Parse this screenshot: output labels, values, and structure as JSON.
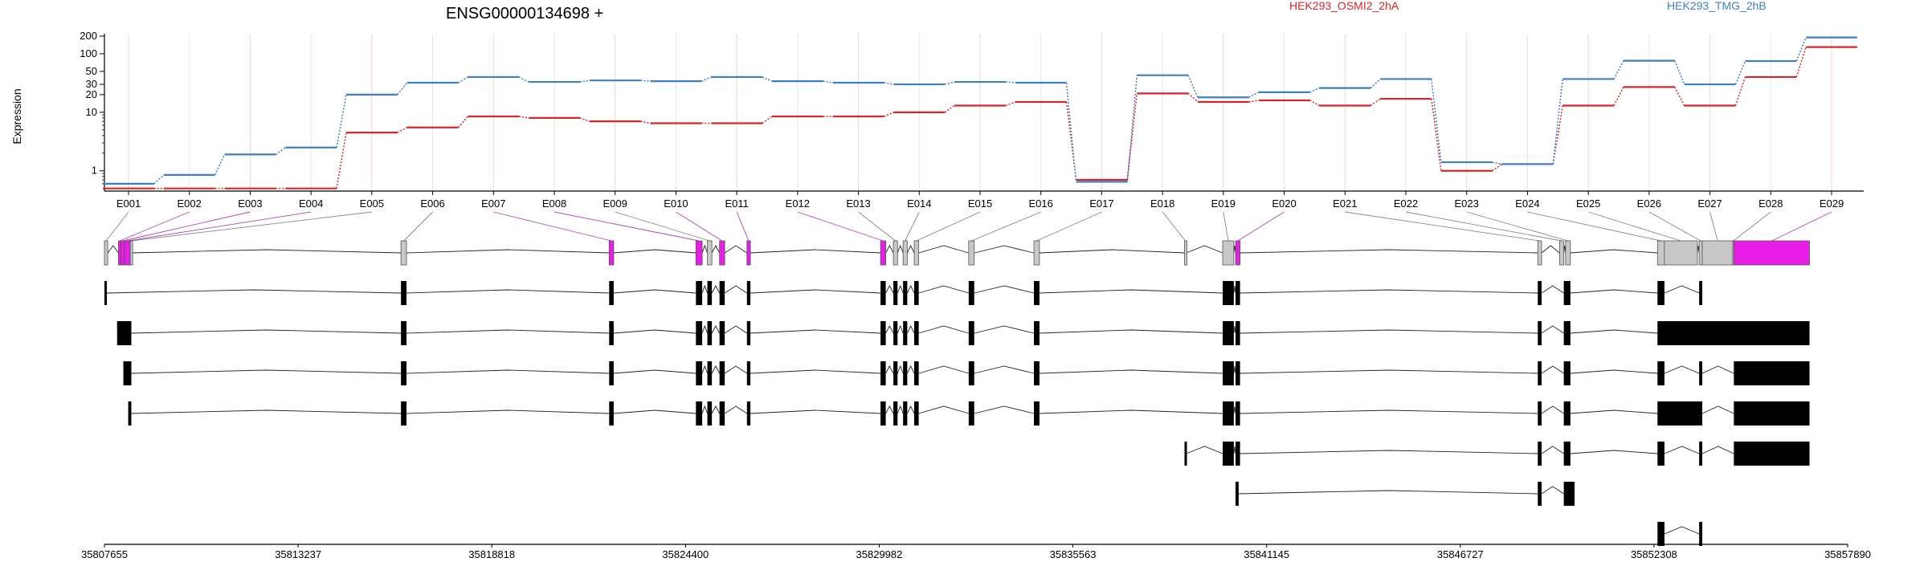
{
  "chart_data": {
    "type": "line",
    "title": "ENSG00000134698 +",
    "ylabel": "Expression",
    "y_scale": "log",
    "y_ticks": [
      "1",
      "10",
      "20",
      "30",
      "50",
      "100",
      "200"
    ],
    "y_tick_values": [
      1,
      10,
      20,
      30,
      50,
      100,
      200
    ],
    "ylim": [
      0.45,
      220
    ],
    "grid": true,
    "legend_placement": "top",
    "categories": [
      "E001",
      "E002",
      "E003",
      "E004",
      "E005",
      "E006",
      "E007",
      "E008",
      "E009",
      "E010",
      "E011",
      "E012",
      "E013",
      "E014",
      "E015",
      "E016",
      "E017",
      "E018",
      "E019",
      "E020",
      "E021",
      "E022",
      "E023",
      "E024",
      "E025",
      "E026",
      "E027",
      "E028",
      "E029"
    ],
    "series": [
      {
        "name": "HEK293_OSMI2_2hA",
        "color": "#d62728",
        "values": [
          0.5,
          0.5,
          0.5,
          0.5,
          4.5,
          5.5,
          8.5,
          8.0,
          7.0,
          6.5,
          6.5,
          8.5,
          8.5,
          10,
          13,
          15,
          0.7,
          21,
          15,
          16,
          13,
          17,
          1.0,
          1.3,
          13,
          27,
          13,
          40,
          130
        ]
      },
      {
        "name": "HEK293_TMG_2hB",
        "color": "#3f7fbf",
        "values": [
          0.6,
          0.85,
          1.9,
          2.5,
          20,
          32,
          40,
          33,
          35,
          34,
          40,
          34,
          32,
          30,
          33,
          32,
          0.65,
          43,
          18,
          22,
          26,
          37,
          1.4,
          1.3,
          37,
          76,
          30,
          75,
          190
        ]
      }
    ],
    "exon_model": {
      "coord_ticks": [
        "35807655",
        "35813237",
        "35818818",
        "35824400",
        "35829982",
        "35835563",
        "35841145",
        "35846727",
        "35852308",
        "35857890"
      ],
      "exons": [
        {
          "label": "E001",
          "start": 35807655,
          "end": 35807750,
          "highlight": false
        },
        {
          "label": "E002",
          "start": 35808060,
          "end": 35808130,
          "highlight": true
        },
        {
          "label": "E003",
          "start": 35808130,
          "end": 35808230,
          "highlight": true
        },
        {
          "label": "E004",
          "start": 35808230,
          "end": 35808400,
          "highlight": true
        },
        {
          "label": "E005",
          "start": 35808400,
          "end": 35808450,
          "highlight": false
        },
        {
          "label": "E006",
          "start": 35816200,
          "end": 35816360,
          "highlight": false
        },
        {
          "label": "E007",
          "start": 35822200,
          "end": 35822330,
          "highlight": true
        },
        {
          "label": "E008",
          "start": 35824700,
          "end": 35824880,
          "highlight": true
        },
        {
          "label": "E009",
          "start": 35825030,
          "end": 35825160,
          "highlight": false
        },
        {
          "label": "E010",
          "start": 35825380,
          "end": 35825530,
          "highlight": true
        },
        {
          "label": "E011",
          "start": 35826170,
          "end": 35826270,
          "highlight": true
        },
        {
          "label": "E012",
          "start": 35830020,
          "end": 35830170,
          "highlight": true
        },
        {
          "label": "E013",
          "start": 35830390,
          "end": 35830510,
          "highlight": false
        },
        {
          "label": "E014",
          "start": 35830670,
          "end": 35830790,
          "highlight": false
        },
        {
          "label": "E015",
          "start": 35830990,
          "end": 35831120,
          "highlight": false
        },
        {
          "label": "E016",
          "start": 35832560,
          "end": 35832720,
          "highlight": false
        },
        {
          "label": "E017",
          "start": 35834440,
          "end": 35834600,
          "highlight": false
        },
        {
          "label": "E018",
          "start": 35838780,
          "end": 35838830,
          "highlight": false
        },
        {
          "label": "E019",
          "start": 35839880,
          "end": 35840200,
          "highlight": false
        },
        {
          "label": "E020",
          "start": 35840250,
          "end": 35840380,
          "highlight": true
        },
        {
          "label": "E021",
          "start": 35848960,
          "end": 35849070,
          "highlight": false
        },
        {
          "label": "E022",
          "start": 35849590,
          "end": 35849710,
          "highlight": false
        },
        {
          "label": "E023",
          "start": 35849760,
          "end": 35849900,
          "highlight": false
        },
        {
          "label": "E024",
          "start": 35852410,
          "end": 35852610,
          "highlight": false
        },
        {
          "label": "E025",
          "start": 35852610,
          "end": 35853560,
          "highlight": false
        },
        {
          "label": "E026",
          "start": 35853610,
          "end": 35853700,
          "highlight": false
        },
        {
          "label": "E027",
          "start": 35853700,
          "end": 35854580,
          "highlight": false
        },
        {
          "label": "E028",
          "start": 35854580,
          "end": 35854610,
          "highlight": false
        },
        {
          "label": "E029",
          "start": 35854610,
          "end": 35856790,
          "highlight": true
        }
      ],
      "transcripts": [
        [
          [
            35807655,
            35807720
          ],
          [
            35816200,
            35816360
          ],
          [
            35822200,
            35822330
          ],
          [
            35824700,
            35824880
          ],
          [
            35825030,
            35825160
          ],
          [
            35825380,
            35825530
          ],
          [
            35826170,
            35826270
          ],
          [
            35830020,
            35830170
          ],
          [
            35830390,
            35830510
          ],
          [
            35830670,
            35830790
          ],
          [
            35830990,
            35831120
          ],
          [
            35832560,
            35832720
          ],
          [
            35834440,
            35834600
          ],
          [
            35839880,
            35840200
          ],
          [
            35840250,
            35840380
          ],
          [
            35848960,
            35849070
          ],
          [
            35849710,
            35849900
          ],
          [
            35852410,
            35852610
          ],
          [
            35853610,
            35853700
          ]
        ],
        [
          [
            35808020,
            35808430
          ],
          [
            35816200,
            35816360
          ],
          [
            35822200,
            35822330
          ],
          [
            35824700,
            35824880
          ],
          [
            35825030,
            35825160
          ],
          [
            35825380,
            35825530
          ],
          [
            35826170,
            35826270
          ],
          [
            35830020,
            35830170
          ],
          [
            35830390,
            35830510
          ],
          [
            35830670,
            35830790
          ],
          [
            35830990,
            35831120
          ],
          [
            35832560,
            35832720
          ],
          [
            35834440,
            35834600
          ],
          [
            35839880,
            35840200
          ],
          [
            35840250,
            35840380
          ],
          [
            35848960,
            35849070
          ],
          [
            35849710,
            35849900
          ],
          [
            35852410,
            35856790
          ]
        ],
        [
          [
            35808200,
            35808430
          ],
          [
            35816200,
            35816360
          ],
          [
            35822200,
            35822330
          ],
          [
            35824700,
            35824880
          ],
          [
            35825030,
            35825160
          ],
          [
            35825380,
            35825530
          ],
          [
            35826170,
            35826270
          ],
          [
            35830020,
            35830170
          ],
          [
            35830390,
            35830510
          ],
          [
            35830670,
            35830790
          ],
          [
            35830990,
            35831120
          ],
          [
            35832560,
            35832720
          ],
          [
            35834440,
            35834600
          ],
          [
            35839880,
            35840200
          ],
          [
            35840250,
            35840380
          ],
          [
            35848960,
            35849070
          ],
          [
            35849710,
            35849900
          ],
          [
            35852410,
            35852610
          ],
          [
            35853610,
            35853700
          ],
          [
            35854610,
            35856790
          ]
        ],
        [
          [
            35808340,
            35808430
          ],
          [
            35816200,
            35816360
          ],
          [
            35822200,
            35822330
          ],
          [
            35824700,
            35824880
          ],
          [
            35825030,
            35825160
          ],
          [
            35825380,
            35825530
          ],
          [
            35826170,
            35826270
          ],
          [
            35830020,
            35830170
          ],
          [
            35830390,
            35830510
          ],
          [
            35830670,
            35830790
          ],
          [
            35830990,
            35831120
          ],
          [
            35832560,
            35832720
          ],
          [
            35834440,
            35834600
          ],
          [
            35839880,
            35840200
          ],
          [
            35840250,
            35840380
          ],
          [
            35848960,
            35849070
          ],
          [
            35849710,
            35849900
          ],
          [
            35852410,
            35853700
          ],
          [
            35854610,
            35856790
          ]
        ],
        [
          [
            35838780,
            35838830
          ],
          [
            35839880,
            35840200
          ],
          [
            35840250,
            35840380
          ],
          [
            35848960,
            35849070
          ],
          [
            35849710,
            35849900
          ],
          [
            35852410,
            35852610
          ],
          [
            35853610,
            35853700
          ],
          [
            35854610,
            35856790
          ]
        ],
        [
          [
            35840250,
            35840340
          ],
          [
            35848960,
            35849070
          ],
          [
            35849710,
            35850020
          ]
        ],
        [
          [
            35852410,
            35852610
          ],
          [
            35853610,
            35853700
          ]
        ]
      ]
    }
  }
}
